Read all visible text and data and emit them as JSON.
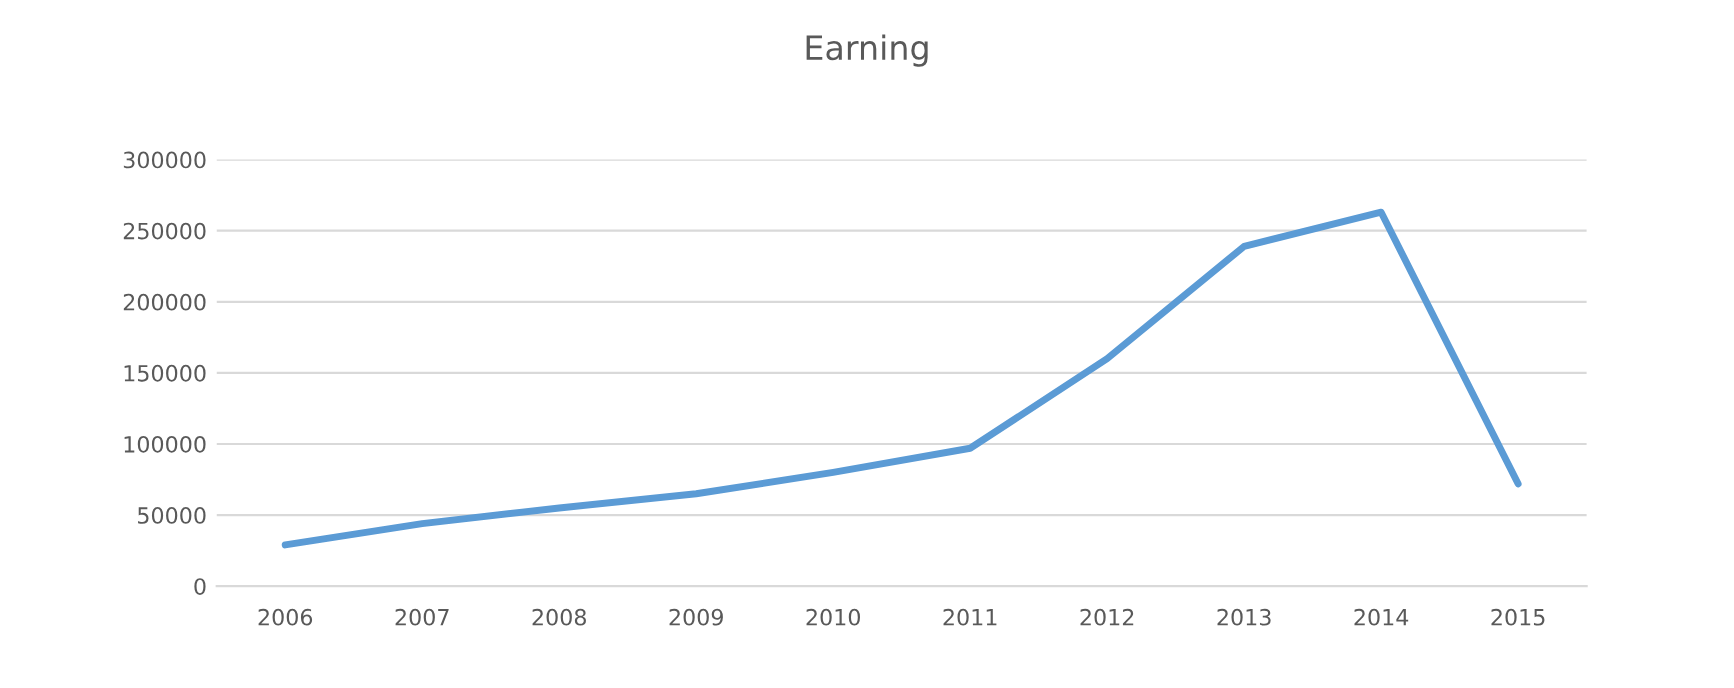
{
  "chart_data": {
    "type": "line",
    "title": "Earning",
    "categories": [
      "2006",
      "2007",
      "2008",
      "2009",
      "2010",
      "2011",
      "2012",
      "2013",
      "2014",
      "2015"
    ],
    "series": [
      {
        "color": "#5b9bd5",
        "values": [
          29000,
          44000,
          55000,
          65000,
          80000,
          97000,
          160000,
          239000,
          263000,
          72000
        ]
      }
    ],
    "ylim": [
      0,
      300000
    ],
    "yticks": [
      0,
      50000,
      100000,
      150000,
      200000,
      250000,
      300000
    ],
    "grid": "y",
    "legend": false,
    "marker": "none",
    "line_style": "solid"
  }
}
